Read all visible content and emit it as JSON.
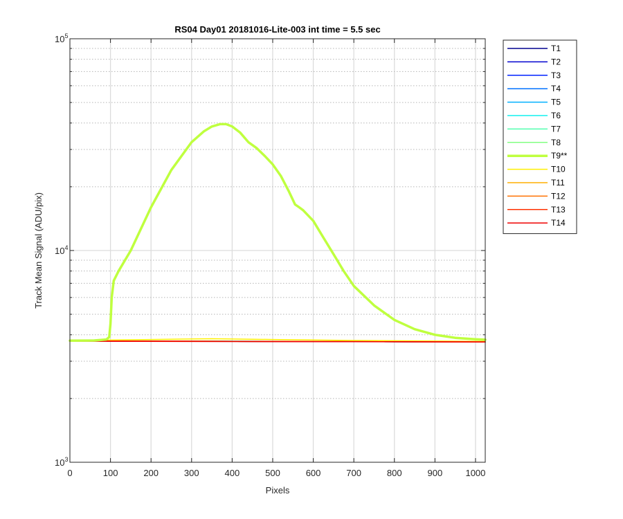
{
  "chart_data": {
    "type": "line",
    "title": "RS04 Day01 20181016-Lite-003 int time = 5.5 sec",
    "xlabel": "Pixels",
    "ylabel": "Track Mean Signal (ADU/pix)",
    "xlim": [
      0,
      1024
    ],
    "ylim": [
      1000,
      100000
    ],
    "yscale": "log",
    "grid": true,
    "legend_position": "outside-right-top",
    "x_ticks": [
      "0",
      "100",
      "200",
      "300",
      "400",
      "500",
      "600",
      "700",
      "800",
      "900",
      "1000"
    ],
    "x_tick_values": [
      0,
      100,
      200,
      300,
      400,
      500,
      600,
      700,
      800,
      900,
      1000
    ],
    "y_ticks": [
      {
        "value": 1000,
        "base": "10",
        "exp": "3"
      },
      {
        "value": 10000,
        "base": "10",
        "exp": "4"
      },
      {
        "value": 100000,
        "base": "10",
        "exp": "5"
      }
    ],
    "series": [
      {
        "name": "T1",
        "color": "#00008f",
        "x": [
          0,
          1024
        ],
        "y": [
          3740,
          3700
        ]
      },
      {
        "name": "T2",
        "color": "#0000cf",
        "x": [
          0,
          1024
        ],
        "y": [
          3740,
          3700
        ]
      },
      {
        "name": "T3",
        "color": "#0020ff",
        "x": [
          0,
          1024
        ],
        "y": [
          3740,
          3700
        ]
      },
      {
        "name": "T4",
        "color": "#0070ff",
        "x": [
          0,
          1024
        ],
        "y": [
          3740,
          3700
        ]
      },
      {
        "name": "T5",
        "color": "#00b0ff",
        "x": [
          0,
          1024
        ],
        "y": [
          3740,
          3700
        ]
      },
      {
        "name": "T6",
        "color": "#10f0ef",
        "x": [
          0,
          1024
        ],
        "y": [
          3745,
          3705
        ]
      },
      {
        "name": "T7",
        "color": "#50ffaf",
        "x": [
          0,
          1024
        ],
        "y": [
          3745,
          3705
        ]
      },
      {
        "name": "T8",
        "color": "#80ff80",
        "x": [
          0,
          1024
        ],
        "y": [
          3750,
          3705
        ]
      },
      {
        "name": "T9**",
        "color": "#bfff3f",
        "highlight": true,
        "x": [
          0,
          60,
          90,
          97,
          100,
          103,
          108,
          120,
          150,
          200,
          250,
          300,
          330,
          350,
          370,
          385,
          400,
          420,
          440,
          460,
          480,
          500,
          520,
          540,
          555,
          565,
          575,
          600,
          625,
          650,
          675,
          700,
          750,
          800,
          850,
          900,
          950,
          1000,
          1024
        ],
        "y": [
          3750,
          3760,
          3800,
          3900,
          4500,
          6000,
          7200,
          8000,
          10000,
          16000,
          24000,
          32500,
          36500,
          38500,
          39500,
          39500,
          38500,
          36000,
          32500,
          30500,
          28000,
          25500,
          22500,
          19000,
          16500,
          16000,
          15500,
          13800,
          11500,
          9600,
          8000,
          6800,
          5500,
          4700,
          4250,
          4000,
          3870,
          3810,
          3790
        ]
      },
      {
        "name": "T10",
        "color": "#ffef00",
        "x": [
          0,
          200,
          350,
          500,
          700,
          1024
        ],
        "y": [
          3760,
          3800,
          3830,
          3800,
          3760,
          3720
        ]
      },
      {
        "name": "T11",
        "color": "#ffaf00",
        "x": [
          0,
          1024
        ],
        "y": [
          3740,
          3700
        ]
      },
      {
        "name": "T12",
        "color": "#ff7000",
        "x": [
          0,
          1024
        ],
        "y": [
          3740,
          3700
        ]
      },
      {
        "name": "T13",
        "color": "#ff3000",
        "x": [
          0,
          1024
        ],
        "y": [
          3740,
          3700
        ]
      },
      {
        "name": "T14",
        "color": "#ef0000",
        "x": [
          0,
          1024
        ],
        "y": [
          3730,
          3700
        ]
      }
    ]
  }
}
